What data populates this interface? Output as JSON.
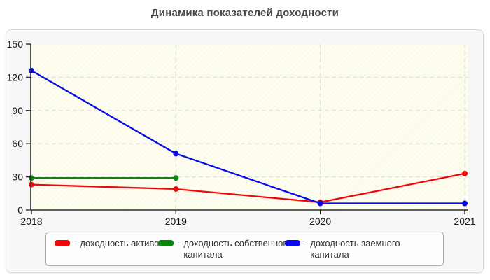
{
  "title": "Динамика показателей доходности",
  "chart_data": {
    "type": "line",
    "title": "Динамика показателей доходности",
    "categories": [
      "2018",
      "2019",
      "2020",
      "2021"
    ],
    "series": [
      {
        "name": "доходность активов",
        "color": "#ee0a0a",
        "values": [
          23,
          19,
          7,
          33
        ]
      },
      {
        "name": "доходность собственного капитала",
        "color": "#0c860c",
        "values": [
          29,
          29,
          null,
          null
        ]
      },
      {
        "name": "доходность заемного капитала",
        "color": "#0808e8",
        "values": [
          126,
          51,
          6,
          6
        ]
      }
    ],
    "ylim": [
      0,
      150
    ],
    "yticks": [
      0,
      30,
      60,
      90,
      120,
      150
    ],
    "xlabel": "",
    "ylabel": "",
    "grid": true,
    "grid_style": "dashed",
    "legend_position": "bottom",
    "plot_background": "#fbfbe8",
    "hatch_color": "#ffffff",
    "axis_color": "#2a2a2a",
    "gridline_color": "#dadada"
  },
  "legend": {
    "separator": "-",
    "items": [
      {
        "label": "доходность активов"
      },
      {
        "label": "доходность собственного капитала"
      },
      {
        "label": "доходность заемного капитала"
      }
    ]
  }
}
